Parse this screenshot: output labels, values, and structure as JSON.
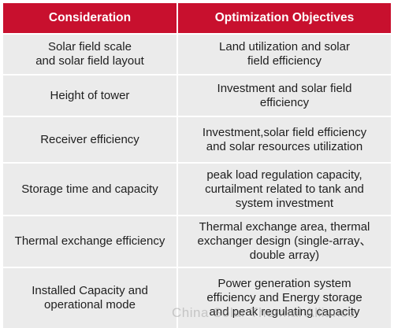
{
  "table": {
    "headers": [
      "Consideration",
      "Optimization Objectives"
    ],
    "rows": [
      {
        "consideration": "Solar field scale\nand solar field layout",
        "objective": "Land utilization and solar\nfield efficiency"
      },
      {
        "consideration": "Height of tower",
        "objective": "Investment and solar field\nefficiency"
      },
      {
        "consideration": "Receiver efficiency",
        "objective": "Investment,solar field efficiency\nand solar resources utilization"
      },
      {
        "consideration": "Storage time and capacity",
        "objective": "peak load regulation capacity,\ncurtailment related to tank and\nsystem investment"
      },
      {
        "consideration": "Thermal exchange efficiency",
        "objective": "Thermal exchange area, thermal\nexchanger design (single-array、\ndouble array)"
      },
      {
        "consideration": "Installed Capacity and\noperational mode",
        "objective": "Power generation system\nefficiency and Energy storage\nand peak regulating capacity"
      }
    ]
  },
  "watermark": "China Solar Thermal Alliance",
  "colors": {
    "header_bg": "#c8102e",
    "header_text": "#ffffff",
    "row_bg": "#ebebeb",
    "text": "#1e1e1e"
  }
}
